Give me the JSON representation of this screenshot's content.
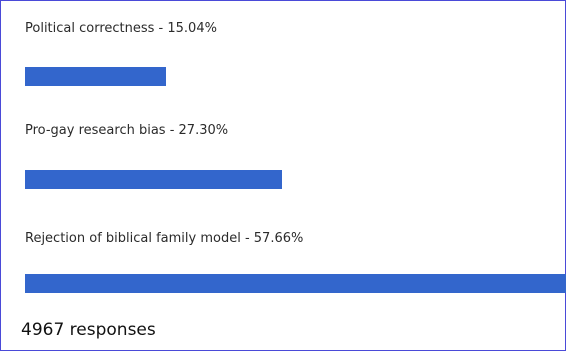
{
  "chart_data": {
    "type": "bar",
    "orientation": "horizontal",
    "bar_color": "#3366cc",
    "options": [
      {
        "label": "Political correctness - 15.04%",
        "category": "Political correctness",
        "percent": 15.04
      },
      {
        "label": "Pro-gay research bias - 27.30%",
        "category": "Pro-gay research bias",
        "percent": 27.3
      },
      {
        "label": "Rejection of biblical family model - 57.66%",
        "category": "Rejection of biblical family model",
        "percent": 57.66
      }
    ],
    "responses_text": "4967 responses"
  }
}
